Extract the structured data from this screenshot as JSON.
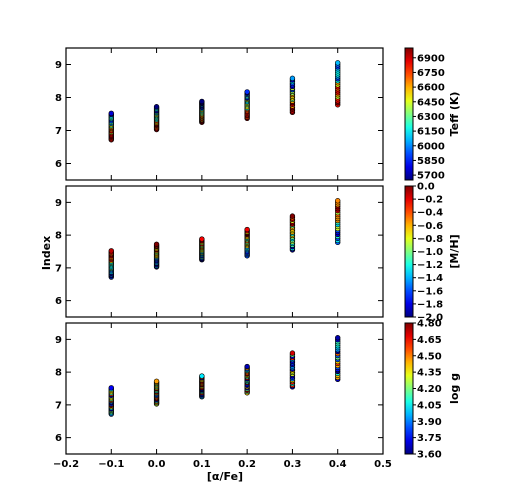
{
  "chart_data": {
    "type": "scatter",
    "xlabel": "[α/Fe]",
    "ylabel": "Index",
    "xlim": [
      -0.2,
      0.5
    ],
    "xticks": [
      -0.2,
      -0.1,
      0.0,
      0.1,
      0.2,
      0.3,
      0.4,
      0.5
    ],
    "xtick_labels": [
      "−0.2",
      "−0.1",
      "0.0",
      "0.1",
      "0.2",
      "0.3",
      "0.4",
      "0.5"
    ],
    "ylim": [
      5.5,
      9.5
    ],
    "yticks": [
      6,
      7,
      8,
      9
    ],
    "colormap": "jet",
    "alpha_fe": [
      -0.1,
      0.0,
      0.1,
      0.2,
      0.3,
      0.4
    ],
    "index_min": [
      6.72,
      7.03,
      7.25,
      7.37,
      7.55,
      7.78
    ],
    "index_max": [
      7.52,
      7.72,
      7.88,
      8.17,
      8.58,
      9.05
    ],
    "panels": [
      {
        "color_by": "Teff (K)",
        "cbar_label": "Teff (K)",
        "clim": [
          5650,
          7000
        ],
        "cbar_ticks": [
          "6900",
          "6750",
          "6600",
          "6450",
          "6300",
          "6150",
          "6000",
          "5850",
          "5700"
        ],
        "cbar_tick_values": [
          6900,
          6750,
          6600,
          6450,
          6300,
          6150,
          6000,
          5850,
          5700
        ],
        "trend": "high Teff at low index, low Teff at high index"
      },
      {
        "color_by": "[M/H]",
        "cbar_label": "[M/H]",
        "clim": [
          -2.0,
          0.0
        ],
        "cbar_ticks": [
          "0.0",
          "−0.2",
          "−0.4",
          "−0.6",
          "−0.8",
          "−1.0",
          "−1.2",
          "−1.4",
          "−1.6",
          "−1.8",
          "−2.0"
        ],
        "cbar_tick_values": [
          0.0,
          -0.2,
          -0.4,
          -0.6,
          -0.8,
          -1.0,
          -1.2,
          -1.4,
          -1.6,
          -1.8,
          -2.0
        ],
        "trend": "high [M/H] at high index, low [M/H] at low index"
      },
      {
        "color_by": "log g",
        "cbar_label": "log g",
        "clim": [
          3.6,
          4.8
        ],
        "cbar_ticks": [
          "4.80",
          "4.65",
          "4.50",
          "4.35",
          "4.20",
          "4.05",
          "3.90",
          "3.75",
          "3.60"
        ],
        "cbar_tick_values": [
          4.8,
          4.65,
          4.5,
          4.35,
          4.2,
          4.05,
          3.9,
          3.75,
          3.6
        ],
        "trend": "mixed"
      }
    ]
  }
}
